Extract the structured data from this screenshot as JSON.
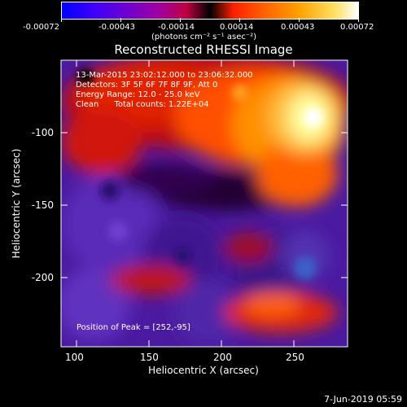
{
  "colorbar": {
    "ticks": [
      "-0.00072",
      "-0.00043",
      "-0.00014",
      "0.00014",
      "0.00043",
      "0.00072"
    ],
    "units": "(photons cm⁻² s⁻¹ asec⁻²)"
  },
  "plot": {
    "title": "Reconstructed RHESSI Image",
    "annotations": [
      "13-Mar-2015 23:02:12.000 to 23:06:32.000",
      "Detectors: 3F 5F 6F 7F 8F 9F, Att 0",
      "Energy Range: 12.0 - 25.0 keV",
      "Clean      Total counts: 1.22E+04"
    ],
    "peak_label": "Position of Peak = [252,-95]",
    "xlabel": "Heliocentric X (arcsec)",
    "ylabel": "Heliocentric Y (arcsec)",
    "xticks": [
      "100",
      "150",
      "200",
      "250"
    ],
    "yticks": [
      "-100",
      "-150",
      "-200"
    ]
  },
  "footer": {
    "timestamp": "7-Jun-2019 05:59"
  },
  "colors": {
    "background": "#000000",
    "axis": "#ffffff"
  }
}
